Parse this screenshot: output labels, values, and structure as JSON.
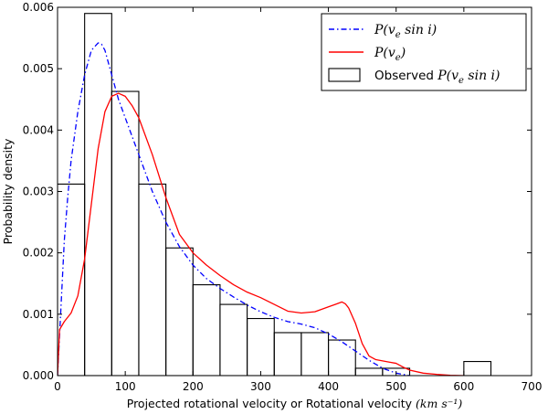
{
  "chart_data": {
    "type": "histogram",
    "title": "",
    "xlabel": "Projected rotational velocity or Rotational velocity",
    "xlabel_unit": "(km s⁻¹)",
    "ylabel": "Probability density",
    "xlim": [
      0,
      700
    ],
    "ylim": [
      0,
      0.006
    ],
    "x_ticks": [
      "0",
      "100",
      "200",
      "300",
      "400",
      "500",
      "600",
      "700"
    ],
    "y_ticks": [
      "0.000",
      "0.001",
      "0.002",
      "0.003",
      "0.004",
      "0.005",
      "0.006"
    ],
    "histogram": {
      "name": "Observed P(vₑ sin i)",
      "bin_edges": [
        0,
        40,
        80,
        120,
        160,
        200,
        240,
        280,
        320,
        360,
        400,
        440,
        480,
        520,
        560,
        600,
        640
      ],
      "values": [
        0.00312,
        0.0059,
        0.00463,
        0.00312,
        0.00208,
        0.00148,
        0.00116,
        0.00093,
        0.0007,
        0.0007,
        0.00058,
        0.00012,
        0.00012,
        0.0,
        0.0,
        0.00023
      ],
      "color": "#000000"
    },
    "series": [
      {
        "name": "P(vₑ sin i)",
        "style": "dash-dot",
        "color": "#0000ff",
        "x": [
          0,
          5,
          10,
          15,
          20,
          30,
          40,
          50,
          60,
          65,
          70,
          80,
          90,
          100,
          120,
          140,
          160,
          180,
          200,
          220,
          240,
          260,
          280,
          300,
          320,
          340,
          360,
          380,
          400,
          420,
          440,
          460,
          480,
          500,
          520
        ],
        "y": [
          0.0,
          0.0011,
          0.0022,
          0.0029,
          0.0035,
          0.0043,
          0.0049,
          0.0053,
          0.00542,
          0.0054,
          0.0053,
          0.0049,
          0.0045,
          0.0042,
          0.0036,
          0.003,
          0.0025,
          0.0021,
          0.0018,
          0.00158,
          0.00142,
          0.00128,
          0.00115,
          0.00104,
          0.00095,
          0.00088,
          0.00084,
          0.00078,
          0.00068,
          0.00055,
          0.0004,
          0.00025,
          0.00012,
          4e-05,
          0.0
        ]
      },
      {
        "name": "P(vₑ)",
        "style": "solid",
        "color": "#ff0000",
        "x": [
          0,
          3,
          10,
          20,
          30,
          40,
          50,
          60,
          70,
          80,
          90,
          100,
          110,
          120,
          140,
          160,
          180,
          200,
          220,
          240,
          260,
          280,
          300,
          320,
          340,
          360,
          380,
          400,
          410,
          420,
          425,
          430,
          440,
          450,
          460,
          470,
          480,
          490,
          500,
          510,
          520,
          540,
          560,
          580,
          600
        ],
        "y": [
          0.0,
          0.00075,
          0.00088,
          0.00102,
          0.0013,
          0.0019,
          0.0028,
          0.0037,
          0.0043,
          0.00455,
          0.0046,
          0.00455,
          0.0044,
          0.0042,
          0.0036,
          0.0029,
          0.0023,
          0.002,
          0.0018,
          0.00163,
          0.00148,
          0.00136,
          0.00127,
          0.00116,
          0.00105,
          0.00102,
          0.00104,
          0.00112,
          0.00116,
          0.0012,
          0.00117,
          0.0011,
          0.00085,
          0.00052,
          0.00032,
          0.00026,
          0.00024,
          0.00022,
          0.0002,
          0.00014,
          9e-05,
          4e-05,
          2e-05,
          5e-06,
          0.0
        ]
      }
    ],
    "legend_location": "top-right",
    "legend": [
      {
        "label_prefix": "P(",
        "label_main": "v",
        "label_sub": "e",
        "label_suffix": " sin i)",
        "style": "dash-dot",
        "color": "#0000ff"
      },
      {
        "label_prefix": "P(",
        "label_main": "v",
        "label_sub": "e",
        "label_suffix": ")",
        "style": "solid",
        "color": "#ff0000"
      },
      {
        "plain": "Observed",
        "label_prefix": "P(",
        "label_main": "v",
        "label_sub": "e",
        "label_suffix": " sin i)",
        "style": "box",
        "color": "#000000"
      }
    ]
  }
}
